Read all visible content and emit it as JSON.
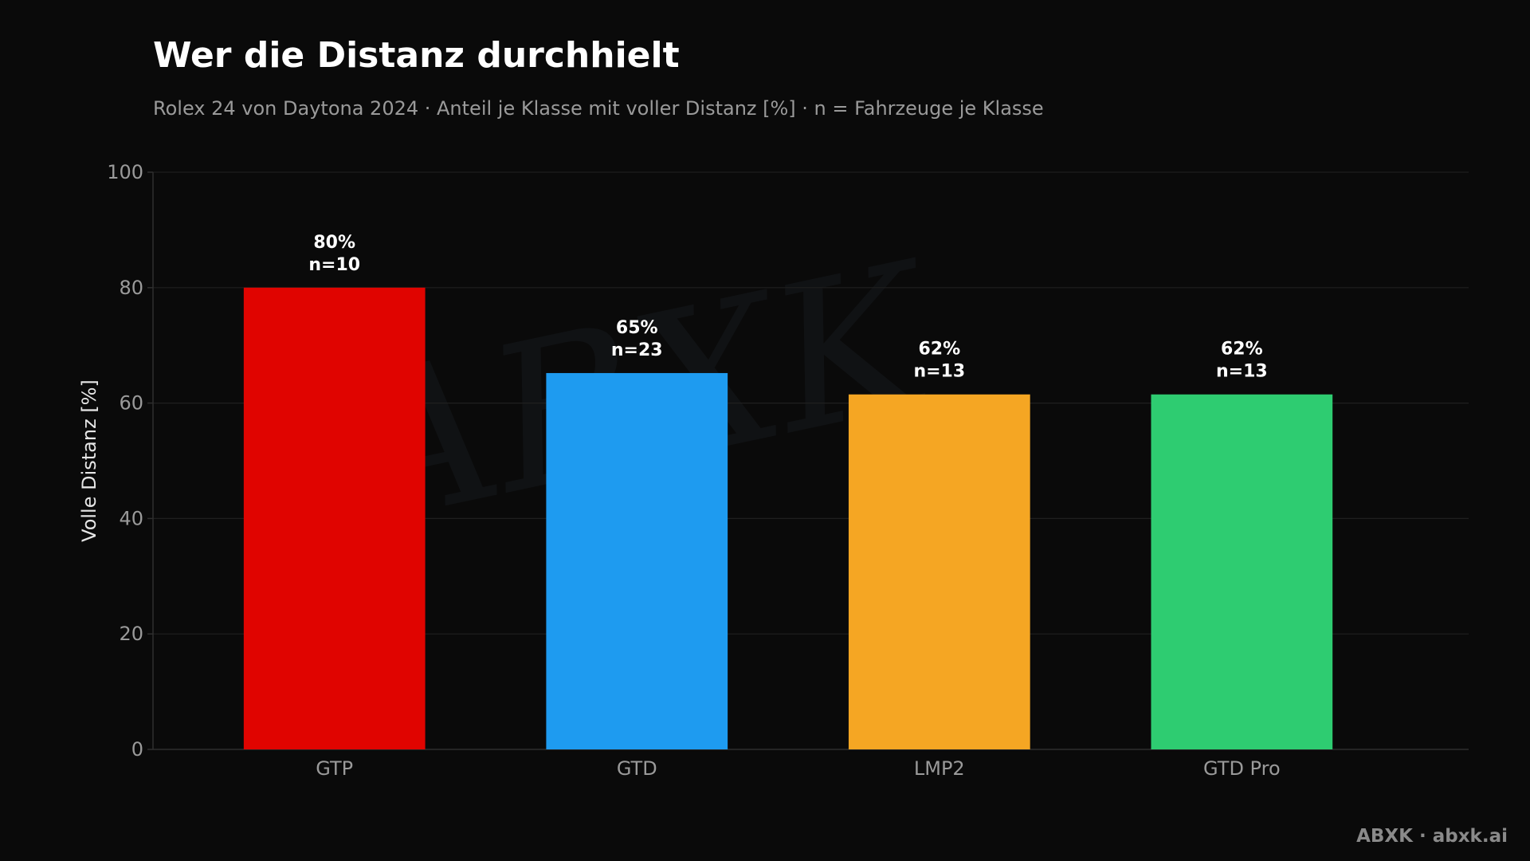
{
  "header": {
    "title": "Wer die Distanz durchhielt",
    "subtitle": "Rolex 24 von Daytona 2024 · Anteil je Klasse mit voller Distanz [%] · n = Fahrzeuge je Klasse"
  },
  "footer": {
    "brand": "ABXK · abxk.ai"
  },
  "watermark": {
    "text": "ABXK"
  },
  "colors": {
    "background": "#0a0a0a",
    "grid": "#1f1f1f",
    "axis": "#2e2e2e"
  },
  "chart_data": {
    "type": "bar",
    "title": "Wer die Distanz durchhielt",
    "subtitle": "Rolex 24 von Daytona 2024 · Anteil je Klasse mit voller Distanz [%] · n = Fahrzeuge je Klasse",
    "xlabel": "",
    "ylabel": "Volle Distanz [%]",
    "ylim": [
      0,
      100
    ],
    "yticks": [
      0,
      20,
      40,
      60,
      80,
      100
    ],
    "grid": true,
    "categories": [
      "GTP",
      "GTD",
      "LMP2",
      "GTD Pro"
    ],
    "values": [
      80,
      65.2,
      61.5,
      61.5
    ],
    "value_labels": [
      "80%",
      "65%",
      "62%",
      "62%"
    ],
    "n_labels": [
      "n=10",
      "n=23",
      "n=13",
      "n=13"
    ],
    "colors": [
      "#e00400",
      "#1e9bf0",
      "#f5a623",
      "#2ecc71"
    ]
  }
}
